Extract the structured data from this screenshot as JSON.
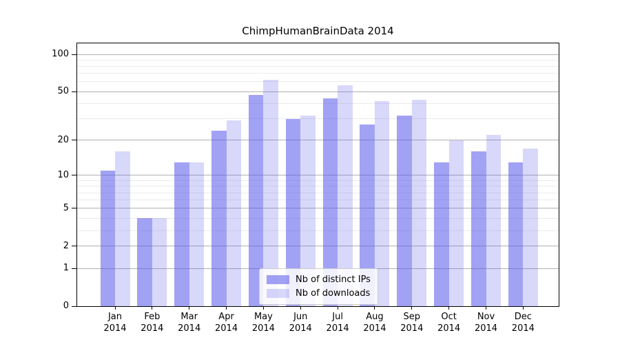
{
  "title": "ChimpHumanBrainData 2014",
  "chart_data": {
    "type": "bar",
    "title": "ChimpHumanBrainData 2014",
    "scale": "log10(1+y)",
    "categories": [
      "Jan",
      "Feb",
      "Mar",
      "Apr",
      "May",
      "Jun",
      "Jul",
      "Aug",
      "Sep",
      "Oct",
      "Nov",
      "Dec"
    ],
    "year_label": "2014",
    "series": [
      {
        "name": "Nb of distinct IPs",
        "color": "rgba(90,90,235,0.56)",
        "values": [
          11,
          4,
          13,
          24,
          47,
          30,
          44,
          27,
          32,
          13,
          16,
          13
        ]
      },
      {
        "name": "Nb of downloads",
        "color": "rgba(90,90,235,0.24)",
        "values": [
          16,
          4,
          13,
          29,
          62,
          32,
          56,
          42,
          43,
          20,
          22,
          17
        ]
      }
    ],
    "xlabel": "",
    "ylabel": "",
    "ylim": [
      0,
      123
    ],
    "y_major_ticks": [
      0,
      1,
      2,
      5,
      10,
      20,
      50,
      100
    ],
    "y_minor_gridlines": [
      3,
      4,
      6,
      7,
      8,
      9,
      30,
      40,
      60,
      70,
      80,
      90
    ],
    "grid": "horizontal",
    "legend_position": "bottom-center",
    "colors": {
      "bar_dark": "rgba(90,90,235,0.56)",
      "bar_light": "rgba(90,90,235,0.24)",
      "gridline_major": "#b0b0b0",
      "gridline_minor": "#ebebeb",
      "axis": "#000000"
    }
  }
}
